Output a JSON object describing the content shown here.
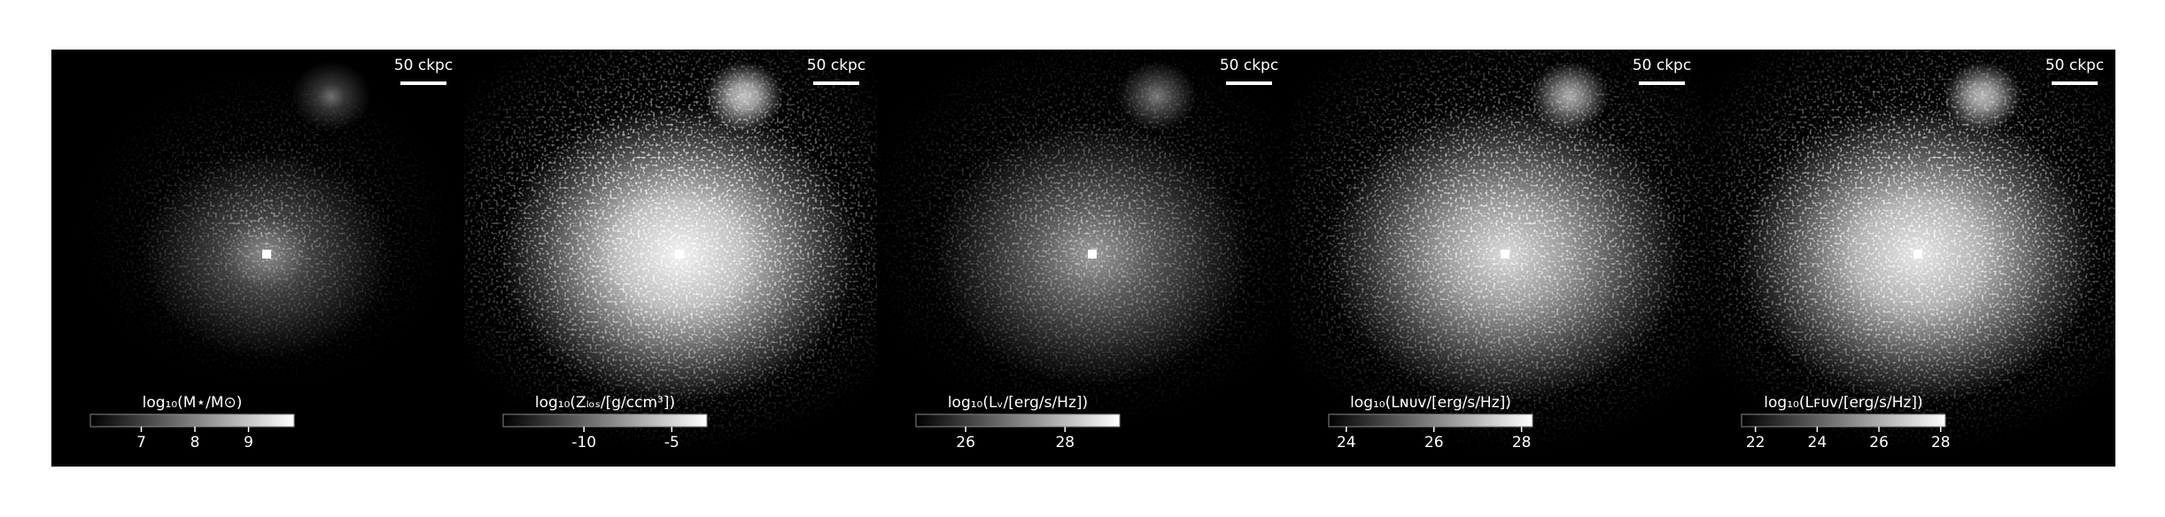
{
  "chart_data": [
    {
      "type": "image",
      "scalebar": "50 ckpc",
      "colorbar_label": "log₁₀(M⋆/M⊙)",
      "clim": [
        6.05,
        9.85
      ],
      "cticks": [
        7,
        8,
        9
      ],
      "colormap": "gray"
    },
    {
      "type": "image",
      "scalebar": "50 ckpc",
      "colorbar_label": "log₁₀(Zₗₒₛ/[g/ccm³])",
      "clim": [
        -14.6,
        -3
      ],
      "cticks": [
        -10,
        -5
      ],
      "colormap": "gray"
    },
    {
      "type": "image",
      "scalebar": "50 ckpc",
      "colorbar_label": "log₁₀(Lᵥ/[erg/s/Hz])",
      "clim": [
        25,
        29.1
      ],
      "cticks": [
        26,
        28
      ],
      "colormap": "gray"
    },
    {
      "type": "image",
      "scalebar": "50 ckpc",
      "colorbar_label": "log₁₀(Lɴᴜᴠ/[erg/s/Hz])",
      "clim": [
        23.6,
        28.25
      ],
      "cticks": [
        24,
        26,
        28
      ],
      "colormap": "gray"
    },
    {
      "type": "image",
      "scalebar": "50 ckpc",
      "colorbar_label": "log₁₀(Lꜰᴜᴠ/[erg/s/Hz])",
      "clim": [
        21.55,
        28.15
      ],
      "cticks": [
        22,
        24,
        26,
        28
      ],
      "colormap": "gray"
    }
  ]
}
